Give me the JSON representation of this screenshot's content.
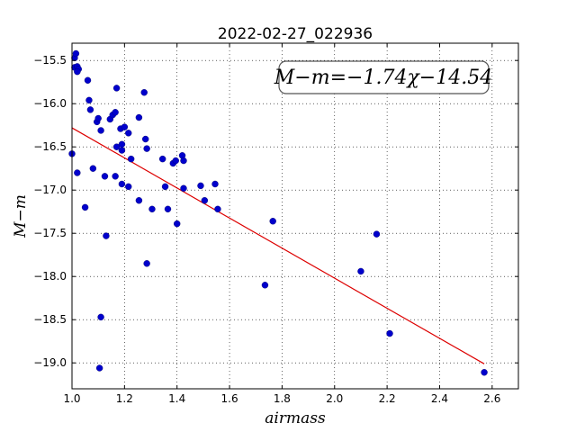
{
  "chart_data": {
    "type": "scatter",
    "title": "2022-02-27_022936",
    "xlabel": "airmass",
    "ylabel": "M−m",
    "xlim": [
      1.0,
      2.7
    ],
    "ylim": [
      -19.3,
      -15.3
    ],
    "y_inverted": true,
    "grid": true,
    "grid_style": "dotted",
    "x_ticks": [
      1.0,
      1.2,
      1.4,
      1.6,
      1.8,
      2.0,
      2.2,
      2.4,
      2.6
    ],
    "x_tick_labels": [
      "1.0",
      "1.2",
      "1.4",
      "1.6",
      "1.8",
      "2.0",
      "2.2",
      "2.4",
      "2.6"
    ],
    "y_ticks": [
      -15.5,
      -16.0,
      -16.5,
      -17.0,
      -17.5,
      -18.0,
      -18.5,
      -19.0
    ],
    "y_tick_labels": [
      "−15.5",
      "−16.0",
      "−16.5",
      "−17.0",
      "−17.5",
      "−18.0",
      "−18.5",
      "−19.0"
    ],
    "point_color": "#0000cc",
    "fit_color": "#dd0000",
    "annotation": "M−m=−1.74χ−14.54",
    "annotation_position": "top-right",
    "fit": {
      "slope": -1.74,
      "intercept": -14.54,
      "x_range": [
        1.0,
        2.57
      ]
    },
    "points": [
      {
        "x": 1.01,
        "y": -15.47
      },
      {
        "x": 1.015,
        "y": -15.42
      },
      {
        "x": 1.01,
        "y": -15.58
      },
      {
        "x": 1.02,
        "y": -15.57
      },
      {
        "x": 1.025,
        "y": -15.6
      },
      {
        "x": 1.02,
        "y": -15.63
      },
      {
        "x": 1.0,
        "y": -16.58
      },
      {
        "x": 1.02,
        "y": -16.8
      },
      {
        "x": 1.05,
        "y": -17.2
      },
      {
        "x": 1.06,
        "y": -15.73
      },
      {
        "x": 1.065,
        "y": -15.96
      },
      {
        "x": 1.07,
        "y": -16.07
      },
      {
        "x": 1.08,
        "y": -16.75
      },
      {
        "x": 1.095,
        "y": -16.21
      },
      {
        "x": 1.1,
        "y": -16.17
      },
      {
        "x": 1.11,
        "y": -16.31
      },
      {
        "x": 1.11,
        "y": -18.47
      },
      {
        "x": 1.105,
        "y": -19.06
      },
      {
        "x": 1.125,
        "y": -16.84
      },
      {
        "x": 1.13,
        "y": -17.53
      },
      {
        "x": 1.145,
        "y": -16.18
      },
      {
        "x": 1.155,
        "y": -16.13
      },
      {
        "x": 1.165,
        "y": -16.1
      },
      {
        "x": 1.165,
        "y": -16.84
      },
      {
        "x": 1.17,
        "y": -15.82
      },
      {
        "x": 1.17,
        "y": -16.5
      },
      {
        "x": 1.185,
        "y": -16.29
      },
      {
        "x": 1.19,
        "y": -16.47
      },
      {
        "x": 1.19,
        "y": -16.54
      },
      {
        "x": 1.19,
        "y": -16.93
      },
      {
        "x": 1.2,
        "y": -16.27
      },
      {
        "x": 1.215,
        "y": -16.34
      },
      {
        "x": 1.215,
        "y": -16.96
      },
      {
        "x": 1.225,
        "y": -16.64
      },
      {
        "x": 1.255,
        "y": -16.16
      },
      {
        "x": 1.255,
        "y": -17.12
      },
      {
        "x": 1.275,
        "y": -15.87
      },
      {
        "x": 1.28,
        "y": -16.41
      },
      {
        "x": 1.285,
        "y": -16.52
      },
      {
        "x": 1.285,
        "y": -17.85
      },
      {
        "x": 1.305,
        "y": -17.22
      },
      {
        "x": 1.345,
        "y": -16.64
      },
      {
        "x": 1.355,
        "y": -16.96
      },
      {
        "x": 1.365,
        "y": -17.22
      },
      {
        "x": 1.385,
        "y": -16.69
      },
      {
        "x": 1.395,
        "y": -16.66
      },
      {
        "x": 1.4,
        "y": -17.39
      },
      {
        "x": 1.42,
        "y": -16.6
      },
      {
        "x": 1.425,
        "y": -16.66
      },
      {
        "x": 1.425,
        "y": -16.98
      },
      {
        "x": 1.49,
        "y": -16.95
      },
      {
        "x": 1.505,
        "y": -17.12
      },
      {
        "x": 1.545,
        "y": -16.93
      },
      {
        "x": 1.555,
        "y": -17.22
      },
      {
        "x": 1.735,
        "y": -18.1
      },
      {
        "x": 1.765,
        "y": -17.36
      },
      {
        "x": 2.1,
        "y": -17.94
      },
      {
        "x": 2.16,
        "y": -17.51
      },
      {
        "x": 2.21,
        "y": -18.66
      },
      {
        "x": 2.57,
        "y": -19.11
      }
    ]
  }
}
